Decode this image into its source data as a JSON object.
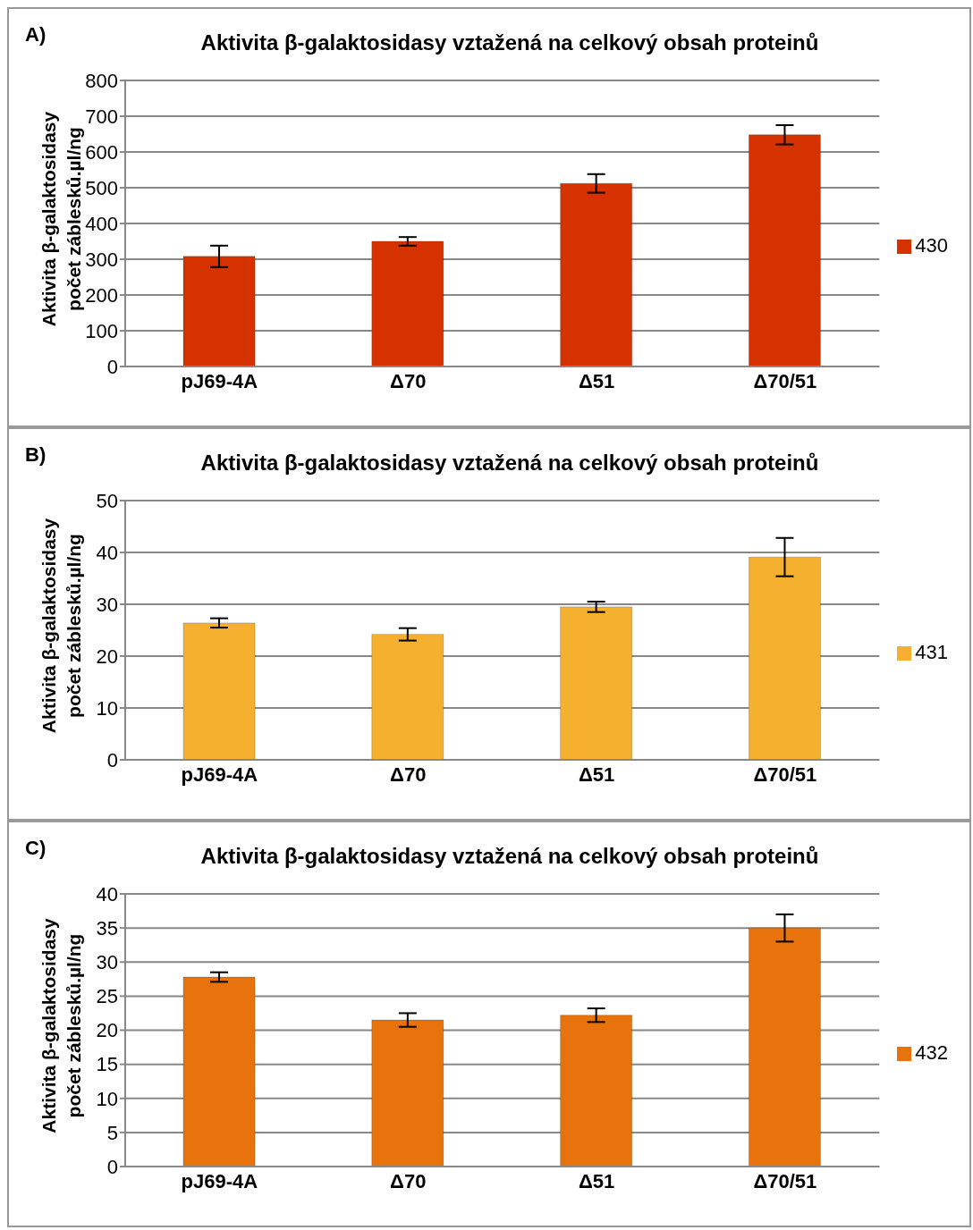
{
  "chart_data": [
    {
      "type": "bar",
      "title": "Aktivita β-galaktosidasy vztažená na celkový obsah proteinů",
      "ylabel": "Aktivita β-galaktosidasy\npočet záblesků.µl/ng",
      "annotations": [
        "A)"
      ],
      "categories": [
        "pJ69-4A",
        "Δ70",
        "Δ51",
        "Δ70/51"
      ],
      "series": [
        {
          "name": "430",
          "color": "#d63200",
          "values": [
            308,
            350,
            512,
            648
          ],
          "errors": [
            30,
            12,
            26,
            27
          ]
        }
      ],
      "ylim": [
        0,
        800
      ],
      "yticks": [
        0,
        100,
        200,
        300,
        400,
        500,
        600,
        700,
        800
      ],
      "grid": "y",
      "legend": "right"
    },
    {
      "type": "bar",
      "title": "Aktivita β-galaktosidasy vztažená na celkový obsah proteinů",
      "ylabel": "Aktivita β-galaktosidasy\npočet záblesků.µl/ng",
      "annotations": [
        "B)"
      ],
      "categories": [
        "pJ69-4A",
        "Δ70",
        "Δ51",
        "Δ70/51"
      ],
      "series": [
        {
          "name": "431",
          "color": "#f5b030",
          "values": [
            26.4,
            24.2,
            29.5,
            39.1
          ],
          "errors": [
            0.9,
            1.2,
            1.0,
            3.7
          ]
        }
      ],
      "ylim": [
        0,
        50
      ],
      "yticks": [
        0,
        10,
        20,
        30,
        40,
        50
      ],
      "grid": "y",
      "legend": "right"
    },
    {
      "type": "bar",
      "title": "Aktivita β-galaktosidasy vztažená na celkový obsah proteinů",
      "ylabel": "Aktivita β-galaktosidasy\npočet záblesků.µl/ng",
      "annotations": [
        "C)"
      ],
      "categories": [
        "pJ69-4A",
        "Δ70",
        "Δ51",
        "Δ70/51"
      ],
      "series": [
        {
          "name": "432",
          "color": "#e8720c",
          "values": [
            27.8,
            21.5,
            22.2,
            35.0
          ],
          "errors": [
            0.7,
            1.0,
            1.0,
            2.0
          ]
        }
      ],
      "ylim": [
        0,
        40
      ],
      "yticks": [
        0,
        5,
        10,
        15,
        20,
        25,
        30,
        35,
        40
      ],
      "grid": "y",
      "legend": "right"
    }
  ]
}
